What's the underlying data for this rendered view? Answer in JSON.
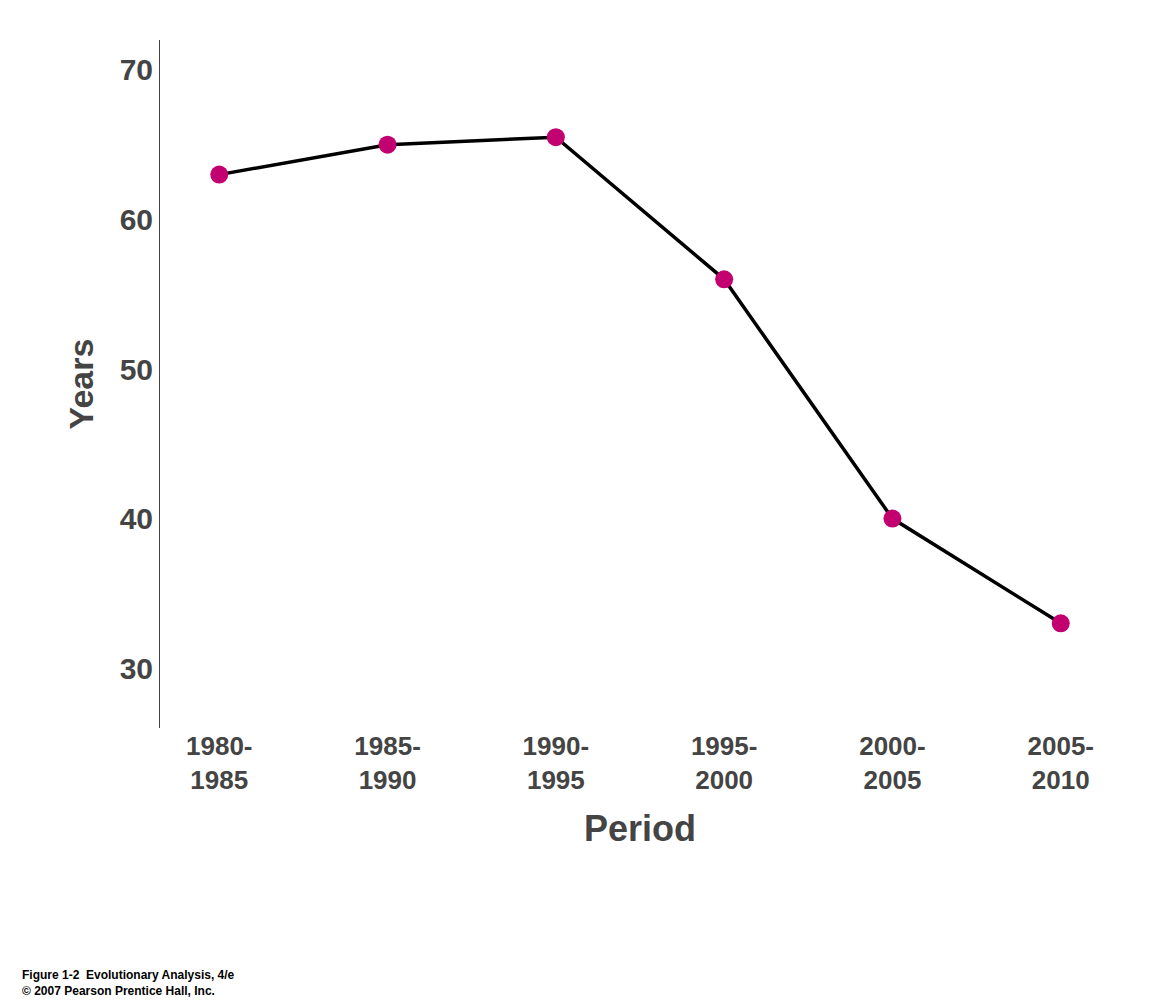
{
  "chart_data": {
    "type": "line",
    "xlabel": "Period",
    "ylabel": "Years",
    "categories": [
      "1980-\n1985",
      "1985-\n1990",
      "1990-\n1995",
      "1995-\n2000",
      "2000-\n2005",
      "2005-\n2010"
    ],
    "values": [
      63.0,
      65.0,
      65.5,
      56.0,
      40.0,
      33.0
    ],
    "color": "#000000",
    "colors": [
      "#C2006F",
      "#C2006F",
      "#C2006F",
      "#C2006F",
      "#C2006F",
      "#C2006F"
    ],
    "marker": "circle",
    "line_style": "solid",
    "ylim": [
      26,
      72
    ],
    "yticks": [
      30,
      40,
      50,
      60,
      70
    ],
    "grid": false,
    "annotations": [
      "Figure 1-2  Evolutionary Analysis, 4/e",
      "© 2007 Pearson Prentice Hall, Inc."
    ]
  }
}
